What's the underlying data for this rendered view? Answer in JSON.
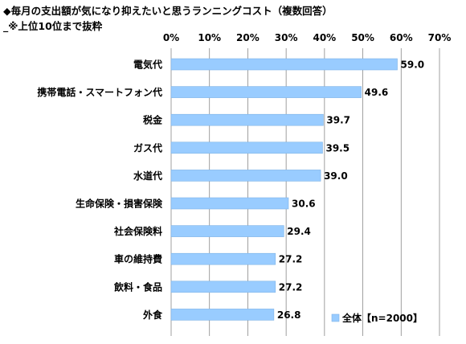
{
  "title": "◆毎月の支出額が気になり抑えたいと思うランニングコスト（複数回答）",
  "subtitle": "_※上位10位まで抜粋",
  "legend_label": "全体【n=2000】",
  "colors": {
    "bar": "#99ccff",
    "bar_stroke": "#7fb3e6",
    "grid": "#888888"
  },
  "chart_data": {
    "type": "bar",
    "orientation": "horizontal",
    "xlim": [
      0,
      70
    ],
    "ticks": [
      "0%",
      "10%",
      "20%",
      "30%",
      "40%",
      "50%",
      "60%",
      "70%"
    ],
    "grid": true,
    "legend_position": "bottom-right",
    "categories": [
      "電気代",
      "携帯電話・スマートフォン代",
      "税金",
      "ガス代",
      "水道代",
      "生命保険・損害保険",
      "社会保険料",
      "車の維持費",
      "飲料・食品",
      "外食"
    ],
    "series": [
      {
        "name": "全体【n=2000】",
        "values": [
          59.0,
          49.6,
          39.7,
          39.5,
          39.0,
          30.6,
          29.4,
          27.2,
          27.2,
          26.8
        ]
      }
    ],
    "value_labels": [
      "59.0",
      "49.6",
      "39.7",
      "39.5",
      "39.0",
      "30.6",
      "29.4",
      "27.2",
      "27.2",
      "26.8"
    ]
  }
}
